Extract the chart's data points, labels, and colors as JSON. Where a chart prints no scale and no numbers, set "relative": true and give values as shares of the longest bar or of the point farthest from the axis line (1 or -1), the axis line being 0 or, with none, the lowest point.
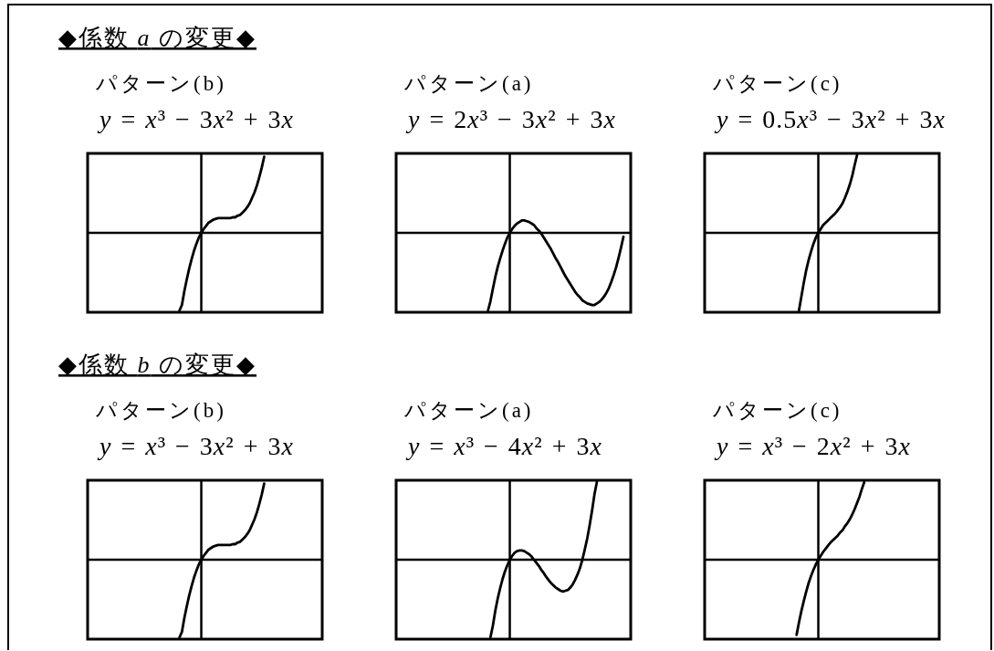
{
  "chart_data": [
    {
      "type": "other",
      "title": "◆係数 a の変更◆"
    },
    {
      "type": "line",
      "title": "パターン(b)",
      "subtitle": "y = x³ − 3x² + 3x",
      "relative": true,
      "categories": [
        null,
        null,
        null,
        null,
        null,
        null,
        null,
        null,
        null,
        null,
        null,
        null,
        null,
        null,
        null,
        null,
        null,
        null,
        null,
        null,
        null,
        null,
        null,
        null,
        null,
        null,
        null,
        null,
        null,
        null,
        null,
        null,
        null,
        null,
        null,
        null,
        null,
        null,
        null,
        null,
        null,
        null,
        null,
        null,
        null,
        null,
        null,
        null,
        null,
        null,
        null,
        null,
        null,
        null,
        null,
        null,
        null,
        null,
        null,
        null,
        null,
        null,
        null,
        null,
        null,
        null,
        null,
        null,
        null,
        null,
        null,
        null,
        null,
        null,
        null,
        null,
        null,
        null,
        null,
        null,
        null,
        null,
        null,
        null,
        null,
        null,
        null,
        null,
        null,
        null,
        null,
        null,
        null,
        null,
        null,
        null,
        null,
        null
      ],
      "series": [
        {
          "color": "#000000",
          "values": [
            null,
            null,
            null,
            null,
            null,
            null,
            null,
            null,
            null,
            null,
            null,
            null,
            null,
            null,
            null,
            null,
            null,
            null,
            null,
            null,
            null,
            null,
            null,
            null,
            null,
            null,
            null,
            null,
            null,
            null,
            null,
            null,
            null,
            null,
            null,
            null,
            null,
            null,
            -1,
            -0.93,
            -0.75,
            -0.6,
            -0.46,
            -0.34,
            -0.23,
            -0.14,
            -0.06,
            0,
            0.05,
            0.09,
            0.13,
            0.15,
            0.17,
            0.18,
            0.19,
            0.19,
            0.19,
            0.19,
            0.19,
            0.19,
            0.2,
            0.2,
            0.22,
            0.23,
            0.26,
            0.29,
            0.33,
            0.38,
            0.45,
            0.52,
            0.61,
            0.72,
            0.84,
            0.98,
            null,
            null,
            null,
            null,
            null,
            null,
            null,
            null,
            null,
            null,
            null,
            null,
            null,
            null,
            null,
            null,
            null,
            null,
            null,
            null,
            null,
            null,
            null,
            null
          ]
        }
      ]
    },
    {
      "type": "line",
      "title": "パターン(a)",
      "subtitle": "y = 2x³ − 3x² + 3x",
      "relative": true,
      "categories": [
        null,
        null,
        null,
        null,
        null,
        null,
        null,
        null,
        null,
        null,
        null,
        null,
        null,
        null,
        null,
        null,
        null,
        null,
        null,
        null,
        null,
        null,
        null,
        null,
        null,
        null,
        null,
        null,
        null,
        null,
        null,
        null,
        null,
        null,
        null,
        null,
        null,
        null,
        null,
        null,
        null,
        null,
        null,
        null,
        null,
        null,
        null,
        null,
        null,
        null,
        null,
        null,
        null,
        null,
        null,
        null,
        null,
        null,
        null,
        null,
        null,
        null,
        null,
        null,
        null,
        null,
        null,
        null,
        null,
        null,
        null,
        null,
        null,
        null,
        null,
        null,
        null,
        null,
        null,
        null,
        null,
        null,
        null,
        null,
        null,
        null,
        null,
        null,
        null,
        null,
        null,
        null,
        null,
        null,
        null,
        null,
        null,
        null
      ],
      "series": [
        {
          "color": "#000000",
          "values": [
            null,
            null,
            null,
            null,
            null,
            null,
            null,
            null,
            null,
            null,
            null,
            null,
            null,
            null,
            null,
            null,
            null,
            null,
            null,
            null,
            null,
            null,
            null,
            null,
            null,
            null,
            null,
            null,
            null,
            null,
            null,
            null,
            null,
            null,
            null,
            null,
            null,
            null,
            -1,
            -0.88,
            -0.72,
            -0.57,
            -0.44,
            -0.33,
            -0.23,
            -0.14,
            -0.06,
            0,
            0.05,
            0.09,
            0.12,
            0.14,
            0.16,
            0.16,
            0.15,
            0.14,
            0.12,
            0.1,
            0.06,
            0.03,
            -0.01,
            -0.06,
            -0.11,
            -0.16,
            -0.21,
            -0.27,
            -0.33,
            -0.38,
            -0.44,
            -0.5,
            -0.56,
            -0.61,
            -0.66,
            -0.71,
            -0.76,
            -0.8,
            -0.83,
            -0.87,
            -0.89,
            -0.91,
            -0.92,
            -0.93,
            -0.93,
            -0.91,
            -0.89,
            -0.86,
            -0.82,
            -0.77,
            -0.71,
            -0.63,
            -0.54,
            -0.44,
            -0.32,
            -0.19,
            -0.05,
            null,
            null,
            null
          ]
        }
      ]
    },
    {
      "type": "line",
      "title": "パターン(c)",
      "subtitle": "y = 0.5x³ − 3x² + 3x",
      "relative": true,
      "categories": [
        null,
        null,
        null,
        null,
        null,
        null,
        null,
        null,
        null,
        null,
        null,
        null,
        null,
        null,
        null,
        null,
        null,
        null,
        null,
        null,
        null,
        null,
        null,
        null,
        null,
        null,
        null,
        null,
        null,
        null,
        null,
        null,
        null,
        null,
        null,
        null,
        null,
        null,
        null,
        null,
        null,
        null,
        null,
        null,
        null,
        null,
        null,
        null,
        null,
        null,
        null,
        null,
        null,
        null,
        null,
        null,
        null,
        null,
        null,
        null,
        null,
        null,
        null,
        null,
        null,
        null,
        null,
        null,
        null,
        null,
        null,
        null,
        null,
        null,
        null,
        null,
        null,
        null,
        null,
        null,
        null,
        null,
        null,
        null,
        null,
        null,
        null,
        null,
        null,
        null,
        null,
        null,
        null,
        null,
        null,
        null,
        null,
        null
      ],
      "series": [
        {
          "color": "#000000",
          "values": [
            null,
            null,
            null,
            null,
            null,
            null,
            null,
            null,
            null,
            null,
            null,
            null,
            null,
            null,
            null,
            null,
            null,
            null,
            null,
            null,
            null,
            null,
            null,
            null,
            null,
            null,
            null,
            null,
            null,
            null,
            null,
            null,
            null,
            null,
            null,
            null,
            null,
            null,
            null,
            -1,
            -0.82,
            -0.64,
            -0.48,
            -0.35,
            -0.24,
            -0.14,
            -0.06,
            0,
            0.05,
            0.1,
            0.13,
            0.16,
            0.19,
            0.22,
            0.25,
            0.29,
            0.33,
            0.38,
            0.45,
            0.53,
            0.62,
            0.73,
            0.87,
            1,
            null,
            null,
            null,
            null,
            null,
            null,
            null,
            null,
            null,
            null,
            null,
            null,
            null,
            null,
            null,
            null,
            null,
            null,
            null,
            null,
            null,
            null,
            null,
            null,
            null,
            null,
            null,
            null,
            null,
            null,
            null,
            null,
            null,
            null
          ]
        }
      ]
    },
    {
      "type": "other",
      "title": "◆係数 b の変更◆"
    },
    {
      "type": "line",
      "title": "パターン(b)",
      "subtitle": "y = x³ − 3x² + 3x",
      "relative": true,
      "categories": [
        null,
        null,
        null,
        null,
        null,
        null,
        null,
        null,
        null,
        null,
        null,
        null,
        null,
        null,
        null,
        null,
        null,
        null,
        null,
        null,
        null,
        null,
        null,
        null,
        null,
        null,
        null,
        null,
        null,
        null,
        null,
        null,
        null,
        null,
        null,
        null,
        null,
        null,
        null,
        null,
        null,
        null,
        null,
        null,
        null,
        null,
        null,
        null,
        null,
        null,
        null,
        null,
        null,
        null,
        null,
        null,
        null,
        null,
        null,
        null,
        null,
        null,
        null,
        null,
        null,
        null,
        null,
        null,
        null,
        null,
        null,
        null,
        null,
        null,
        null,
        null,
        null,
        null,
        null,
        null,
        null,
        null,
        null,
        null,
        null,
        null,
        null,
        null,
        null,
        null,
        null,
        null,
        null,
        null,
        null,
        null,
        null,
        null
      ],
      "series": [
        {
          "color": "#000000",
          "values": [
            null,
            null,
            null,
            null,
            null,
            null,
            null,
            null,
            null,
            null,
            null,
            null,
            null,
            null,
            null,
            null,
            null,
            null,
            null,
            null,
            null,
            null,
            null,
            null,
            null,
            null,
            null,
            null,
            null,
            null,
            null,
            null,
            null,
            null,
            null,
            null,
            null,
            null,
            -1,
            -0.93,
            -0.75,
            -0.6,
            -0.46,
            -0.34,
            -0.23,
            -0.14,
            -0.06,
            0,
            0.05,
            0.09,
            0.13,
            0.15,
            0.17,
            0.18,
            0.19,
            0.19,
            0.19,
            0.19,
            0.19,
            0.19,
            0.2,
            0.2,
            0.22,
            0.23,
            0.26,
            0.29,
            0.33,
            0.38,
            0.45,
            0.52,
            0.61,
            0.72,
            0.84,
            0.98,
            null,
            null,
            null,
            null,
            null,
            null,
            null,
            null,
            null,
            null,
            null,
            null,
            null,
            null,
            null,
            null,
            null,
            null,
            null,
            null,
            null,
            null,
            null,
            null
          ]
        }
      ]
    },
    {
      "type": "line",
      "title": "パターン(a)",
      "subtitle": "y = x³ − 4x² + 3x",
      "relative": true,
      "categories": [
        null,
        null,
        null,
        null,
        null,
        null,
        null,
        null,
        null,
        null,
        null,
        null,
        null,
        null,
        null,
        null,
        null,
        null,
        null,
        null,
        null,
        null,
        null,
        null,
        null,
        null,
        null,
        null,
        null,
        null,
        null,
        null,
        null,
        null,
        null,
        null,
        null,
        null,
        null,
        null,
        null,
        null,
        null,
        null,
        null,
        null,
        null,
        null,
        null,
        null,
        null,
        null,
        null,
        null,
        null,
        null,
        null,
        null,
        null,
        null,
        null,
        null,
        null,
        null,
        null,
        null,
        null,
        null,
        null,
        null,
        null,
        null,
        null,
        null,
        null,
        null,
        null,
        null,
        null,
        null,
        null,
        null,
        null,
        null,
        null,
        null,
        null,
        null,
        null,
        null,
        null,
        null,
        null,
        null,
        null,
        null,
        null,
        null
      ],
      "series": [
        {
          "color": "#000000",
          "values": [
            null,
            null,
            null,
            null,
            null,
            null,
            null,
            null,
            null,
            null,
            null,
            null,
            null,
            null,
            null,
            null,
            null,
            null,
            null,
            null,
            null,
            null,
            null,
            null,
            null,
            null,
            null,
            null,
            null,
            null,
            null,
            null,
            null,
            null,
            null,
            null,
            null,
            null,
            null,
            -1,
            -0.85,
            -0.66,
            -0.5,
            -0.37,
            -0.25,
            -0.15,
            -0.07,
            0,
            0.05,
            0.09,
            0.11,
            0.12,
            0.12,
            0.11,
            0.09,
            0.07,
            0.04,
            0,
            -0.04,
            -0.08,
            -0.13,
            -0.17,
            -0.22,
            -0.26,
            -0.3,
            -0.33,
            -0.36,
            -0.38,
            -0.4,
            -0.41,
            -0.4,
            -0.39,
            -0.36,
            -0.32,
            -0.26,
            -0.19,
            -0.11,
            0,
            0.13,
            0.27,
            0.44,
            0.63,
            0.84,
            1,
            null,
            null,
            null,
            null,
            null,
            null,
            null,
            null,
            null,
            null,
            null,
            null,
            null,
            null
          ]
        }
      ]
    },
    {
      "type": "line",
      "title": "パターン(c)",
      "subtitle": "y = x³ − 2x² + 3x",
      "relative": true,
      "categories": [
        null,
        null,
        null,
        null,
        null,
        null,
        null,
        null,
        null,
        null,
        null,
        null,
        null,
        null,
        null,
        null,
        null,
        null,
        null,
        null,
        null,
        null,
        null,
        null,
        null,
        null,
        null,
        null,
        null,
        null,
        null,
        null,
        null,
        null,
        null,
        null,
        null,
        null,
        null,
        null,
        null,
        null,
        null,
        null,
        null,
        null,
        null,
        null,
        null,
        null,
        null,
        null,
        null,
        null,
        null,
        null,
        null,
        null,
        null,
        null,
        null,
        null,
        null,
        null,
        null,
        null,
        null,
        null,
        null,
        null,
        null,
        null,
        null,
        null,
        null,
        null,
        null,
        null,
        null,
        null,
        null,
        null,
        null,
        null,
        null,
        null,
        null,
        null,
        null,
        null,
        null,
        null,
        null,
        null,
        null,
        null,
        null,
        null
      ],
      "series": [
        {
          "color": "#000000",
          "values": [
            null,
            null,
            null,
            null,
            null,
            null,
            null,
            null,
            null,
            null,
            null,
            null,
            null,
            null,
            null,
            null,
            null,
            null,
            null,
            null,
            null,
            null,
            null,
            null,
            null,
            null,
            null,
            null,
            null,
            null,
            null,
            null,
            null,
            null,
            null,
            null,
            null,
            null,
            -0.97,
            -0.81,
            -0.66,
            -0.53,
            -0.41,
            -0.3,
            -0.21,
            -0.13,
            -0.06,
            0,
            0.05,
            0.1,
            0.14,
            0.18,
            0.22,
            0.25,
            0.28,
            0.31,
            0.35,
            0.38,
            0.43,
            0.47,
            0.52,
            0.58,
            0.65,
            0.73,
            0.81,
            0.91,
            1,
            null,
            null,
            null,
            null,
            null,
            null,
            null,
            null,
            null,
            null,
            null,
            null,
            null,
            null,
            null,
            null,
            null,
            null,
            null,
            null,
            null,
            null,
            null,
            null,
            null,
            null,
            null,
            null,
            null,
            null,
            null
          ]
        }
      ]
    }
  ]
}
